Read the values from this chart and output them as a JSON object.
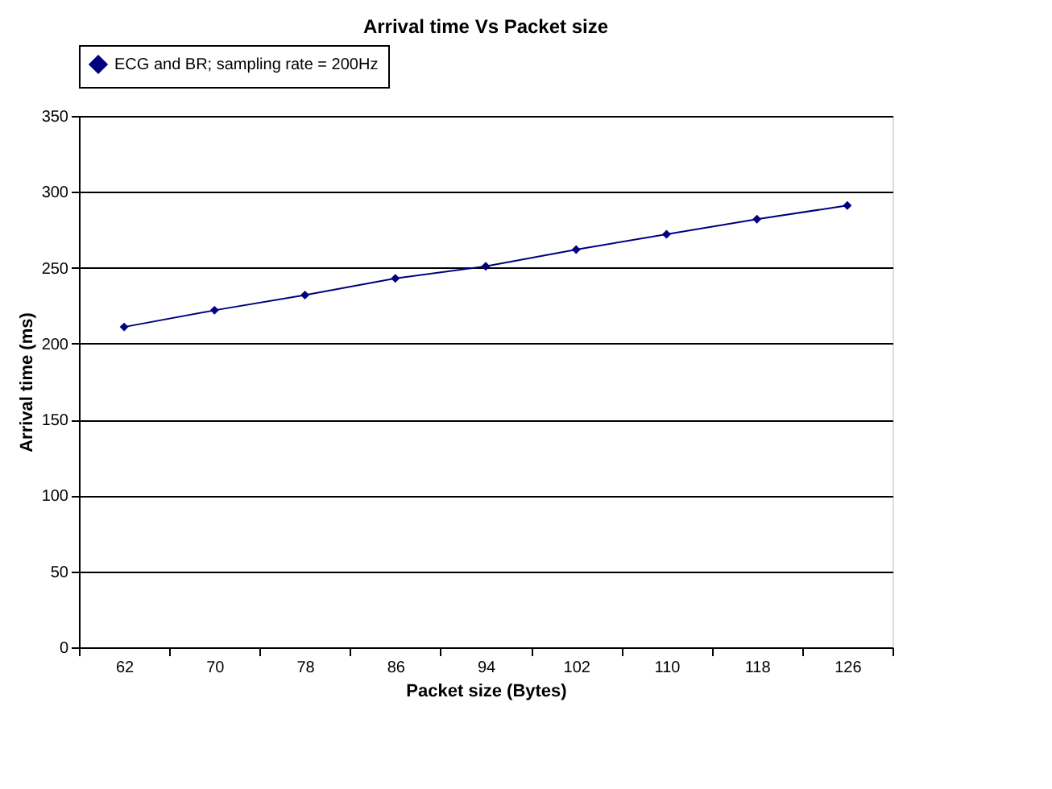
{
  "chart_data": {
    "type": "line",
    "title": "Arrival time Vs Packet size",
    "xlabel": "Packet size (Bytes)",
    "ylabel": "Arrival time (ms)",
    "categories": [
      "62",
      "70",
      "78",
      "86",
      "94",
      "102",
      "110",
      "118",
      "126"
    ],
    "series": [
      {
        "name": "ECG and BR; sampling rate = 200Hz",
        "color": "#000080",
        "values": [
          211,
          222,
          232,
          243,
          251,
          262,
          272,
          282,
          291
        ]
      }
    ],
    "ylim": [
      0,
      350
    ],
    "yticks": [
      0,
      50,
      100,
      150,
      200,
      250,
      300,
      350
    ],
    "grid": "y",
    "legend": "top",
    "marker": "diamond",
    "line_style": "solid"
  }
}
